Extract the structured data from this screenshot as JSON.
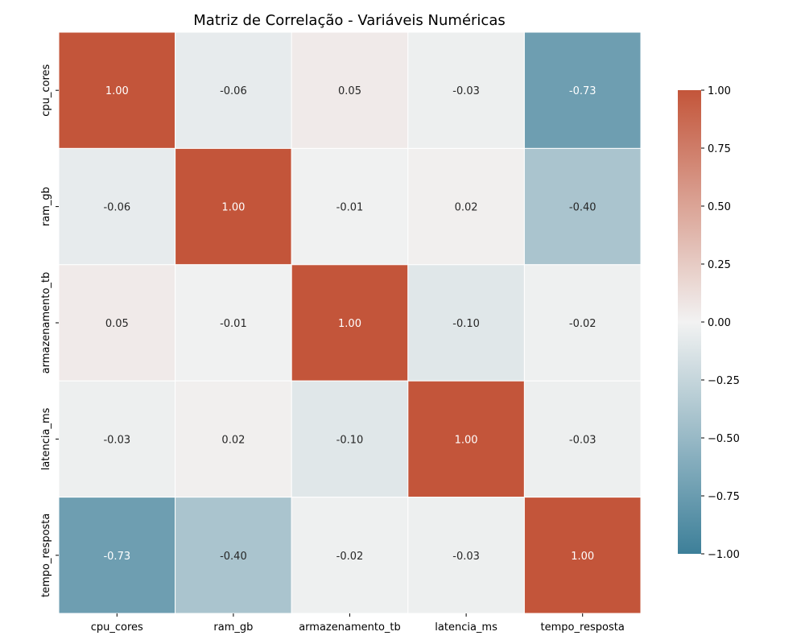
{
  "chart_data": {
    "type": "heatmap",
    "title": "Matriz de Correlação - Variáveis Numéricas",
    "xlabel": "",
    "ylabel": "",
    "categories_x": [
      "cpu_cores",
      "ram_gb",
      "armazenamento_tb",
      "latencia_ms",
      "tempo_resposta"
    ],
    "categories_y": [
      "cpu_cores",
      "ram_gb",
      "armazenamento_tb",
      "latencia_ms",
      "tempo_resposta"
    ],
    "matrix": [
      [
        1.0,
        -0.06,
        0.05,
        -0.03,
        -0.73
      ],
      [
        -0.06,
        1.0,
        -0.01,
        0.02,
        -0.4
      ],
      [
        0.05,
        -0.01,
        1.0,
        -0.1,
        -0.02
      ],
      [
        -0.03,
        0.02,
        -0.1,
        1.0,
        -0.03
      ],
      [
        -0.73,
        -0.4,
        -0.02,
        -0.03,
        1.0
      ]
    ],
    "value_format": "0.00",
    "colorbar": {
      "range": [
        -1.0,
        1.0
      ],
      "ticks": [
        1.0,
        0.75,
        0.5,
        0.25,
        0.0,
        -0.25,
        -0.5,
        -0.75,
        -1.0
      ],
      "tick_labels": [
        "1.00",
        "0.75",
        "0.50",
        "0.25",
        "0.00",
        "−0.25",
        "−0.50",
        "−0.75",
        "−1.00"
      ]
    },
    "colors": {
      "negative": "#3d7f99",
      "center": "#f2f2f2",
      "positive": "#c3553a",
      "grid_lines": "#ffffff"
    },
    "grid": false
  }
}
